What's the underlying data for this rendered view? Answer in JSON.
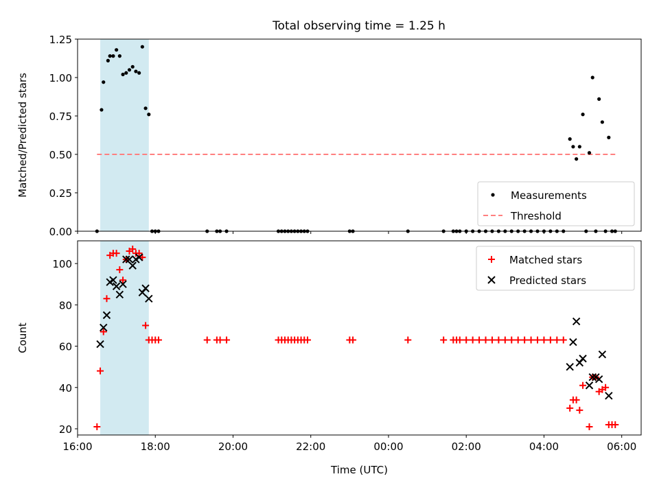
{
  "figure": {
    "title": "Total observing time = 1.25 h"
  },
  "colors": {
    "shade": "#add8e6",
    "threshold": "#ff7f7f",
    "matched": "#ff0000",
    "predicted": "#000000",
    "measurement": "#000000"
  },
  "chart_data": [
    {
      "type": "scatter",
      "ylabel": "Matched/Predicted stars",
      "xlim": [
        "16:00",
        "06:30"
      ],
      "ylim": [
        0,
        1.25
      ],
      "yticks": [
        "0.00",
        "0.25",
        "0.50",
        "0.75",
        "1.00",
        "1.25"
      ],
      "shaded_span": {
        "x": [
          "16:35",
          "17:50"
        ]
      },
      "legend_position": "lower-right",
      "legend": [
        "Measurements",
        "Threshold"
      ],
      "threshold": {
        "name": "Threshold",
        "y": 0.5,
        "x": [
          "16:30",
          "05:50"
        ]
      },
      "series": [
        {
          "name": "Measurements",
          "points": [
            [
              "16:30",
              0.0
            ],
            [
              "16:37",
              0.79
            ],
            [
              "16:40",
              0.97
            ],
            [
              "16:47",
              1.11
            ],
            [
              "16:50",
              1.14
            ],
            [
              "16:55",
              1.14
            ],
            [
              "17:00",
              1.18
            ],
            [
              "17:05",
              1.14
            ],
            [
              "17:10",
              1.02
            ],
            [
              "17:15",
              1.03
            ],
            [
              "17:20",
              1.05
            ],
            [
              "17:25",
              1.07
            ],
            [
              "17:30",
              1.04
            ],
            [
              "17:35",
              1.03
            ],
            [
              "17:40",
              1.2
            ],
            [
              "17:45",
              0.8
            ],
            [
              "17:50",
              0.76
            ],
            [
              "17:55",
              0.0
            ],
            [
              "18:00",
              0.0
            ],
            [
              "18:05",
              0.0
            ],
            [
              "19:20",
              0.0
            ],
            [
              "19:35",
              0.0
            ],
            [
              "19:40",
              0.0
            ],
            [
              "19:50",
              0.0
            ],
            [
              "21:10",
              0.0
            ],
            [
              "21:15",
              0.0
            ],
            [
              "21:20",
              0.0
            ],
            [
              "21:25",
              0.0
            ],
            [
              "21:30",
              0.0
            ],
            [
              "21:35",
              0.0
            ],
            [
              "21:40",
              0.0
            ],
            [
              "21:45",
              0.0
            ],
            [
              "21:50",
              0.0
            ],
            [
              "21:55",
              0.0
            ],
            [
              "23:00",
              0.0
            ],
            [
              "23:05",
              0.0
            ],
            [
              "00:30",
              0.0
            ],
            [
              "01:25",
              0.0
            ],
            [
              "01:40",
              0.0
            ],
            [
              "01:45",
              0.0
            ],
            [
              "01:50",
              0.0
            ],
            [
              "02:00",
              0.0
            ],
            [
              "02:10",
              0.0
            ],
            [
              "02:20",
              0.0
            ],
            [
              "02:30",
              0.0
            ],
            [
              "02:40",
              0.0
            ],
            [
              "02:50",
              0.0
            ],
            [
              "03:00",
              0.0
            ],
            [
              "03:10",
              0.0
            ],
            [
              "03:20",
              0.0
            ],
            [
              "03:30",
              0.0
            ],
            [
              "03:40",
              0.0
            ],
            [
              "03:50",
              0.0
            ],
            [
              "04:00",
              0.0
            ],
            [
              "04:10",
              0.0
            ],
            [
              "04:20",
              0.0
            ],
            [
              "04:30",
              0.0
            ],
            [
              "04:40",
              0.6
            ],
            [
              "04:45",
              0.55
            ],
            [
              "04:50",
              0.47
            ],
            [
              "04:55",
              0.55
            ],
            [
              "05:00",
              0.76
            ],
            [
              "05:05",
              0.0
            ],
            [
              "05:10",
              0.51
            ],
            [
              "05:15",
              1.0
            ],
            [
              "05:20",
              0.0
            ],
            [
              "05:25",
              0.86
            ],
            [
              "05:30",
              0.71
            ],
            [
              "05:35",
              0.0
            ],
            [
              "05:40",
              0.61
            ],
            [
              "05:45",
              0.0
            ],
            [
              "05:50",
              0.0
            ]
          ]
        }
      ]
    },
    {
      "type": "scatter",
      "xlabel": "Time (UTC)",
      "ylabel": "Count",
      "xlim": [
        "16:00",
        "06:30"
      ],
      "ylim": [
        17,
        111
      ],
      "xticks": [
        "16:00",
        "18:00",
        "20:00",
        "22:00",
        "00:00",
        "02:00",
        "04:00",
        "06:00"
      ],
      "yticks": [
        "20",
        "40",
        "60",
        "80",
        "100"
      ],
      "shaded_span": {
        "x": [
          "16:35",
          "17:50"
        ]
      },
      "legend_position": "upper-right",
      "legend": [
        "Matched stars",
        "Predicted stars"
      ],
      "series": [
        {
          "name": "Matched stars",
          "points": [
            [
              "16:30",
              21
            ],
            [
              "16:35",
              48
            ],
            [
              "16:40",
              67
            ],
            [
              "16:45",
              83
            ],
            [
              "16:50",
              104
            ],
            [
              "16:55",
              105
            ],
            [
              "17:00",
              105
            ],
            [
              "17:05",
              97
            ],
            [
              "17:10",
              92
            ],
            [
              "17:15",
              102
            ],
            [
              "17:20",
              106
            ],
            [
              "17:25",
              107
            ],
            [
              "17:30",
              105
            ],
            [
              "17:35",
              105
            ],
            [
              "17:40",
              103
            ],
            [
              "17:45",
              70
            ],
            [
              "17:50",
              63
            ],
            [
              "17:55",
              63
            ],
            [
              "18:00",
              63
            ],
            [
              "18:05",
              63
            ],
            [
              "19:20",
              63
            ],
            [
              "19:35",
              63
            ],
            [
              "19:40",
              63
            ],
            [
              "19:50",
              63
            ],
            [
              "21:10",
              63
            ],
            [
              "21:15",
              63
            ],
            [
              "21:20",
              63
            ],
            [
              "21:25",
              63
            ],
            [
              "21:30",
              63
            ],
            [
              "21:35",
              63
            ],
            [
              "21:40",
              63
            ],
            [
              "21:45",
              63
            ],
            [
              "21:50",
              63
            ],
            [
              "21:55",
              63
            ],
            [
              "23:00",
              63
            ],
            [
              "23:05",
              63
            ],
            [
              "00:30",
              63
            ],
            [
              "01:25",
              63
            ],
            [
              "01:40",
              63
            ],
            [
              "01:45",
              63
            ],
            [
              "01:50",
              63
            ],
            [
              "02:00",
              63
            ],
            [
              "02:10",
              63
            ],
            [
              "02:20",
              63
            ],
            [
              "02:30",
              63
            ],
            [
              "02:40",
              63
            ],
            [
              "02:50",
              63
            ],
            [
              "03:00",
              63
            ],
            [
              "03:10",
              63
            ],
            [
              "03:20",
              63
            ],
            [
              "03:30",
              63
            ],
            [
              "03:40",
              63
            ],
            [
              "03:50",
              63
            ],
            [
              "04:00",
              63
            ],
            [
              "04:10",
              63
            ],
            [
              "04:20",
              63
            ],
            [
              "04:30",
              63
            ],
            [
              "04:40",
              30
            ],
            [
              "04:45",
              34
            ],
            [
              "04:50",
              34
            ],
            [
              "04:55",
              29
            ],
            [
              "05:00",
              41
            ],
            [
              "05:10",
              21
            ],
            [
              "05:15",
              45
            ],
            [
              "05:20",
              45
            ],
            [
              "05:25",
              38
            ],
            [
              "05:30",
              39
            ],
            [
              "05:35",
              40
            ],
            [
              "05:40",
              22
            ],
            [
              "05:45",
              22
            ],
            [
              "05:50",
              22
            ]
          ]
        },
        {
          "name": "Predicted stars",
          "points": [
            [
              "16:35",
              61
            ],
            [
              "16:40",
              69
            ],
            [
              "16:45",
              75
            ],
            [
              "16:50",
              91
            ],
            [
              "16:55",
              92
            ],
            [
              "17:00",
              89
            ],
            [
              "17:05",
              85
            ],
            [
              "17:10",
              90
            ],
            [
              "17:15",
              102
            ],
            [
              "17:20",
              102
            ],
            [
              "17:25",
              99
            ],
            [
              "17:30",
              102
            ],
            [
              "17:35",
              103
            ],
            [
              "17:40",
              86
            ],
            [
              "17:45",
              88
            ],
            [
              "17:50",
              83
            ],
            [
              "04:40",
              50
            ],
            [
              "04:45",
              62
            ],
            [
              "04:50",
              72
            ],
            [
              "04:55",
              52
            ],
            [
              "05:00",
              54
            ],
            [
              "05:10",
              41
            ],
            [
              "05:15",
              45
            ],
            [
              "05:20",
              45
            ],
            [
              "05:25",
              44
            ],
            [
              "05:30",
              56
            ],
            [
              "05:40",
              36
            ]
          ]
        }
      ]
    }
  ]
}
